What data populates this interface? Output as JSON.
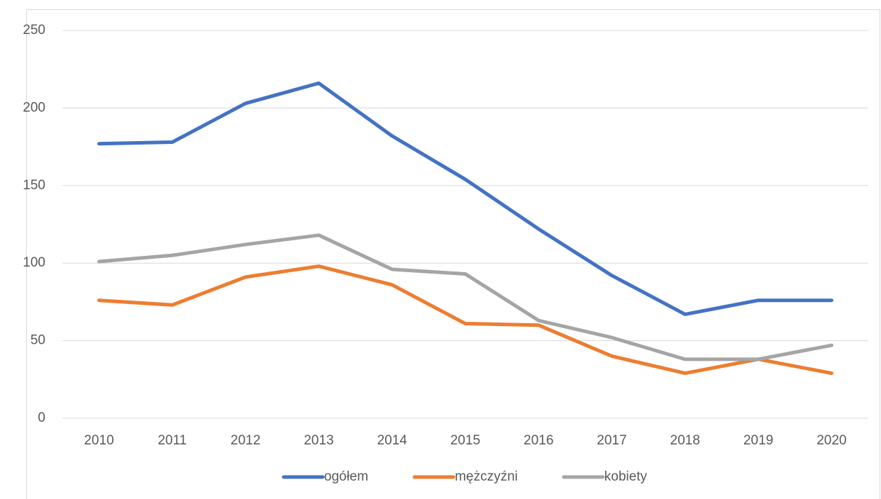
{
  "chart_data": {
    "type": "line",
    "categories": [
      "2010",
      "2011",
      "2012",
      "2013",
      "2014",
      "2015",
      "2016",
      "2017",
      "2018",
      "2019",
      "2020"
    ],
    "series": [
      {
        "name": "ogółem",
        "color": "#4472c4",
        "values": [
          177,
          178,
          203,
          216,
          182,
          154,
          122,
          92,
          67,
          76,
          76
        ]
      },
      {
        "name": "mężczyźni",
        "color": "#ed7d31",
        "values": [
          76,
          73,
          91,
          98,
          86,
          61,
          60,
          40,
          29,
          38,
          29
        ]
      },
      {
        "name": "kobiety",
        "color": "#a5a5a5",
        "values": [
          101,
          105,
          112,
          118,
          96,
          93,
          63,
          52,
          38,
          38,
          47
        ]
      }
    ],
    "ylim": [
      0,
      250
    ],
    "yticks": [
      0,
      50,
      100,
      150,
      200,
      250
    ],
    "grid": true,
    "legend": "bottom"
  }
}
